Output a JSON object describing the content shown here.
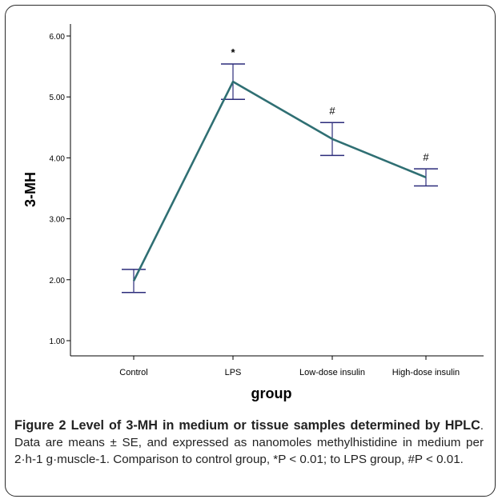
{
  "chart_data": {
    "type": "line",
    "xlabel": "group",
    "ylabel": "3-MH",
    "ylim": [
      0.75,
      6.1
    ],
    "yticks": [
      1.0,
      2.0,
      3.0,
      4.0,
      5.0,
      6.0
    ],
    "ytick_labels": [
      "1.00",
      "2.00",
      "3.00",
      "4.00",
      "5.00",
      "6.00"
    ],
    "categories": [
      "Control",
      "LPS",
      "Low-dose insulin",
      "High-dose insulin"
    ],
    "series": [
      {
        "values": [
          1.98,
          5.25,
          4.31,
          3.68
        ],
        "err_low": [
          1.79,
          4.96,
          4.04,
          3.54
        ],
        "err_high": [
          2.17,
          5.54,
          4.58,
          3.82
        ]
      }
    ],
    "annotations": [
      "",
      "*",
      "#",
      "#"
    ],
    "line_color": "#2f6f73",
    "errorbar_color": "#2b2b7a",
    "grid": false
  },
  "caption": {
    "label": "Figure 2 Level of 3-MH in medium or tissue samples determined by HPLC",
    "text": ". Data are means ± SE, and expressed as nanomoles methylhistidine in medium per 2·h-1 g·muscle-1. Comparison to control group, *P < 0.01; to LPS group, #P < 0.01."
  }
}
